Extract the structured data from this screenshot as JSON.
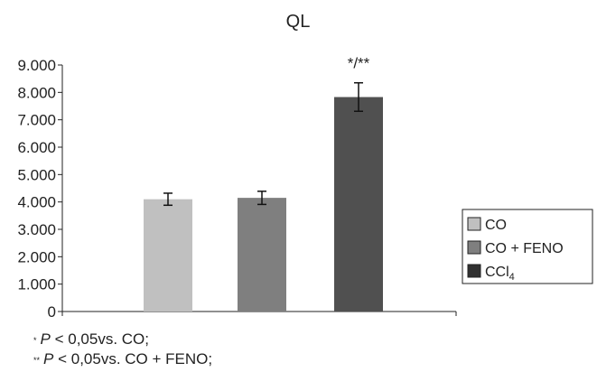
{
  "chart_data": {
    "type": "bar",
    "title": "QL",
    "xlabel": "",
    "ylabel": "",
    "ylim": [
      0,
      9000
    ],
    "yticks": [
      0,
      1000,
      2000,
      3000,
      4000,
      5000,
      6000,
      7000,
      8000,
      9000
    ],
    "ytick_labels": [
      "0",
      "1.000",
      "2.000",
      "3.000",
      "4.000",
      "5.000",
      "6.000",
      "7.000",
      "8.000",
      "9.000"
    ],
    "categories": [
      "CO",
      "CO + FENO",
      "CCl4"
    ],
    "values": [
      4100,
      4150,
      7830
    ],
    "errors": [
      220,
      240,
      520
    ],
    "colors": [
      "#c0c0c0",
      "#7f7f7f",
      "#505050"
    ],
    "legend_colors": [
      "#c0c0c0",
      "#7f7f7f",
      "#303030"
    ],
    "annotations": [
      {
        "category": "CCl4",
        "text": "*/**"
      }
    ],
    "grid": false,
    "legend_position": "right"
  },
  "legend": {
    "items": [
      {
        "label": "CO"
      },
      {
        "label": "CO + FENO"
      },
      {
        "label_main": "CCl",
        "label_sub": "4"
      }
    ]
  },
  "footnotes": [
    {
      "mark": "*",
      "p": "P",
      "text": " < 0,05vs. CO;"
    },
    {
      "mark": "**",
      "p": "P",
      "text": " < 0,05vs. CO + FENO;"
    }
  ]
}
